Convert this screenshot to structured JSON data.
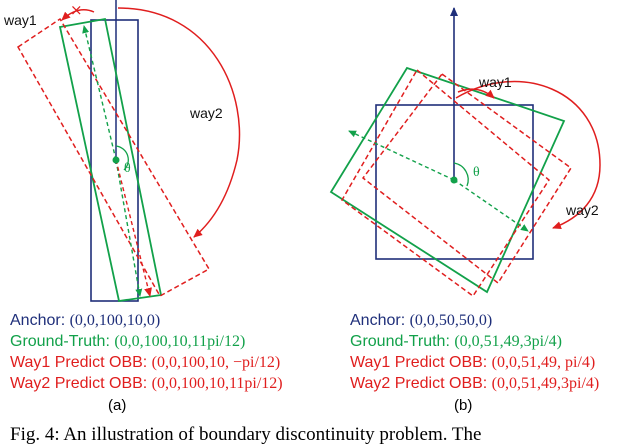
{
  "colors": {
    "anchor": "#1f2f7a",
    "ground_truth": "#12a14a",
    "way1": "#e01e1e",
    "way2": "#e01e1e"
  },
  "panel_a": {
    "labels": {
      "way1": "way1",
      "way2": "way2",
      "theta": "θ",
      "cross": "×"
    },
    "legend": {
      "anchor": {
        "name": "Anchor: ",
        "value": "(0,0,100,10,0)"
      },
      "gt": {
        "name": "Ground-Truth: ",
        "value": "(0,0,100,10,11pi/12)"
      },
      "way1": {
        "name": "Way1 Predict OBB: ",
        "value": "(0,0,100,10, −pi/12)"
      },
      "way2": {
        "name": "Way2 Predict OBB: ",
        "value": "(0,0,100,10,11pi/12)"
      }
    },
    "sublabel": "(a)"
  },
  "panel_b": {
    "labels": {
      "way1": "way1",
      "way2": "way2",
      "theta": "θ"
    },
    "legend": {
      "anchor": {
        "name": "Anchor: ",
        "value": "(0,0,50,50,0)"
      },
      "gt": {
        "name": "Ground-Truth: ",
        "value": "(0,0,51,49,3pi/4)"
      },
      "way1": {
        "name": "Way1 Predict OBB: ",
        "value": "(0,0,51,49, pi/4)"
      },
      "way2": {
        "name": "Way2 Predict OBB: ",
        "value": "(0,0,51,49,3pi/4)"
      }
    },
    "sublabel": "(b)"
  },
  "caption": "Fig. 4: An illustration of boundary discontinuity problem. The"
}
